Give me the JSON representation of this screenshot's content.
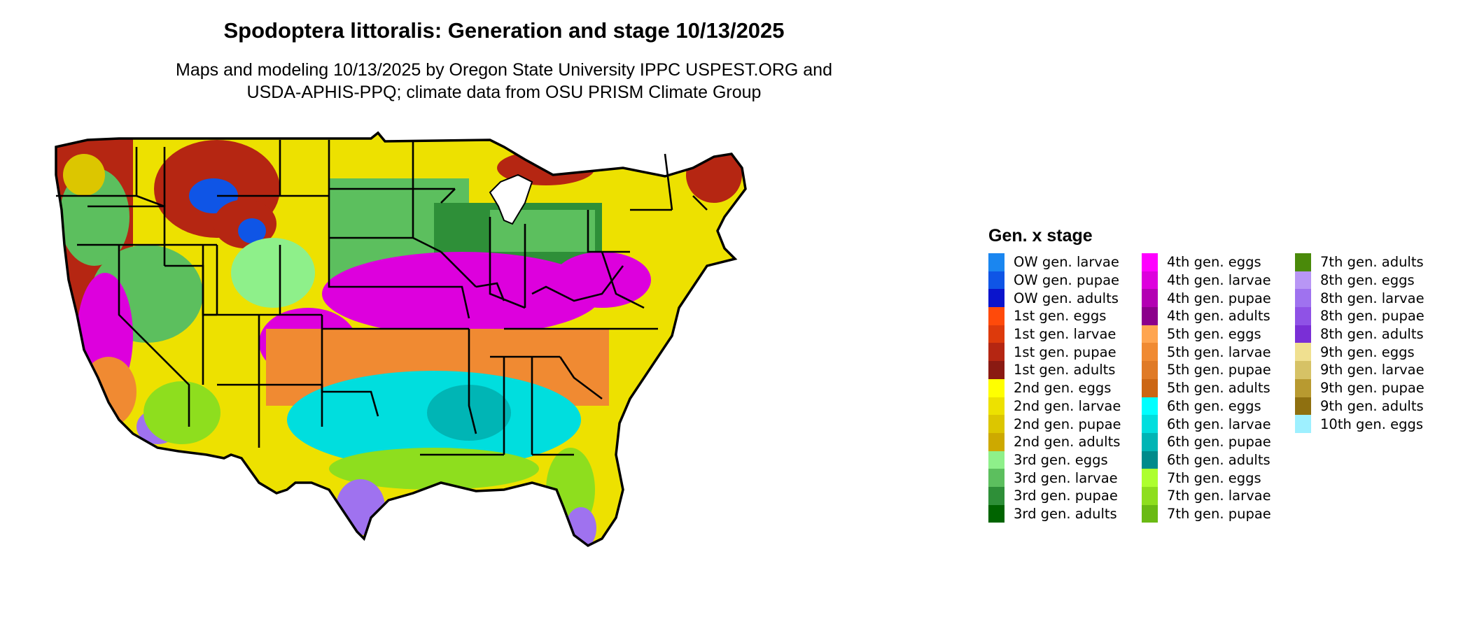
{
  "title": "Spodoptera littoralis: Generation and stage 10/13/2025",
  "subtitle": {
    "line1": "Maps and modeling 10/13/2025 by Oregon State University IPPC USPEST.ORG and",
    "line2": "USDA-APHIS-PPQ; climate data from OSU PRISM Climate Group"
  },
  "legend": {
    "title": "Gen. x stage",
    "columns": [
      [
        {
          "label": "OW gen. larvae",
          "color": "#1a86f0"
        },
        {
          "label": "OW gen. pupae",
          "color": "#0f55e6"
        },
        {
          "label": "OW gen. adults",
          "color": "#0a14cc"
        },
        {
          "label": "1st gen. eggs",
          "color": "#ff4a0a"
        },
        {
          "label": "1st gen. larvae",
          "color": "#dd3a0c"
        },
        {
          "label": "1st gen. pupae",
          "color": "#b52612"
        },
        {
          "label": "1st gen. adults",
          "color": "#8a1a12"
        },
        {
          "label": "2nd gen. eggs",
          "color": "#ffff00"
        },
        {
          "label": "2nd gen. larvae",
          "color": "#ede100"
        },
        {
          "label": "2nd gen. pupae",
          "color": "#dcc600"
        },
        {
          "label": "2nd gen. adults",
          "color": "#cda900"
        },
        {
          "label": "3rd gen. eggs",
          "color": "#8ef08a"
        },
        {
          "label": "3rd gen. larvae",
          "color": "#5cbf5e"
        },
        {
          "label": "3rd gen. pupae",
          "color": "#2e8f38"
        },
        {
          "label": "3rd gen. adults",
          "color": "#006400"
        }
      ],
      [
        {
          "label": "4th gen. eggs",
          "color": "#ff00ff"
        },
        {
          "label": "4th gen. larvae",
          "color": "#dd00dd"
        },
        {
          "label": "4th gen. pupae",
          "color": "#b300b3"
        },
        {
          "label": "4th gen. adults",
          "color": "#8b008b"
        },
        {
          "label": "5th gen. eggs",
          "color": "#ffa550"
        },
        {
          "label": "5th gen. larvae",
          "color": "#f08a32"
        },
        {
          "label": "5th gen. pupae",
          "color": "#e07a26"
        },
        {
          "label": "5th gen. adults",
          "color": "#cc6614"
        },
        {
          "label": "6th gen. eggs",
          "color": "#00ffff"
        },
        {
          "label": "6th gen. larvae",
          "color": "#00dede"
        },
        {
          "label": "6th gen. pupae",
          "color": "#00b5b5"
        },
        {
          "label": "6th gen. adults",
          "color": "#008b8b"
        },
        {
          "label": "7th gen. eggs",
          "color": "#adff2f"
        },
        {
          "label": "7th gen. larvae",
          "color": "#8ede1e"
        },
        {
          "label": "7th gen. pupae",
          "color": "#6aba14"
        }
      ],
      [
        {
          "label": "7th gen. adults",
          "color": "#4a8a0a"
        },
        {
          "label": "8th gen. eggs",
          "color": "#b896f5"
        },
        {
          "label": "8th gen. larvae",
          "color": "#9f72ef"
        },
        {
          "label": "8th gen. pupae",
          "color": "#8f52e6"
        },
        {
          "label": "8th gen. adults",
          "color": "#7a2fd6"
        },
        {
          "label": "9th gen. eggs",
          "color": "#f0e090"
        },
        {
          "label": "9th gen. larvae",
          "color": "#d6c266"
        },
        {
          "label": "9th gen. pupae",
          "color": "#b89a30"
        },
        {
          "label": "9th gen. adults",
          "color": "#8f7010"
        },
        {
          "label": "10th gen. eggs",
          "color": "#9ef0ff"
        }
      ]
    ]
  },
  "map": {
    "region": "Contiguous United States",
    "colors": {
      "yellow": "#ede100",
      "darkYellow": "#dcc600",
      "red": "#b52612",
      "green": "#5cbf5e",
      "darkGreen": "#2e8f38",
      "lightGreen": "#8ef08a",
      "magenta": "#dd00dd",
      "orange": "#f08a32",
      "cyan": "#00dede",
      "teal": "#00b5b5",
      "lime": "#8ede1e",
      "purple": "#9f72ef",
      "blue": "#0f55e6",
      "border": "#000000"
    }
  }
}
